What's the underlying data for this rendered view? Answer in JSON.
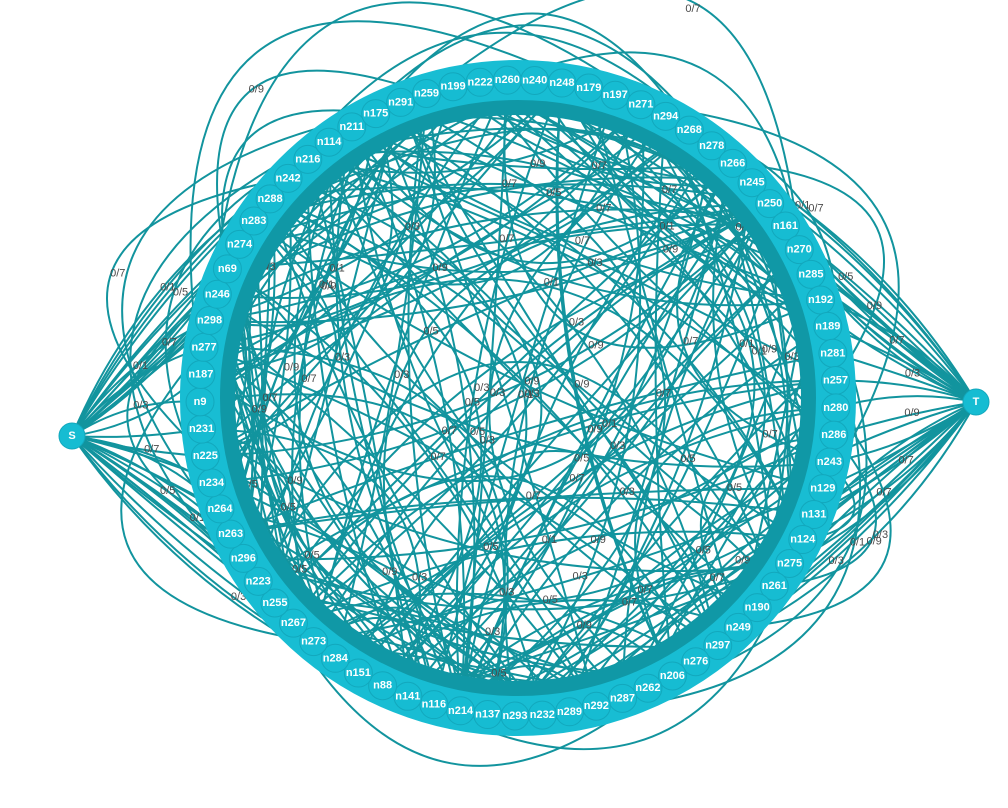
{
  "graph": {
    "colors": {
      "node": "#16bcd2",
      "edge": "#12949e",
      "label": "#4a4a4a",
      "background": "#ffffff"
    },
    "source": {
      "label": "S"
    },
    "sink": {
      "label": "T"
    },
    "edge_label_values": [
      "0/1",
      "0/3",
      "0/5",
      "0/7",
      "0/9"
    ],
    "ring_nodes": [
      "n211",
      "n175",
      "n291",
      "n259",
      "n199",
      "n222",
      "n260",
      "n240",
      "n248",
      "n179",
      "n197",
      "n271",
      "n294",
      "n268",
      "n278",
      "n266",
      "n245",
      "n250",
      "n161",
      "n270",
      "n285",
      "n192",
      "n189",
      "n281",
      "n257",
      "n280",
      "n286",
      "n243",
      "n129",
      "n131",
      "n124",
      "n275",
      "n261",
      "n190",
      "n249",
      "n297",
      "n276",
      "n206",
      "n262",
      "n287",
      "n292",
      "n289",
      "n232",
      "n293",
      "n137",
      "n214",
      "n116",
      "n141",
      "n88",
      "n151",
      "n284",
      "n273",
      "n267",
      "n255",
      "n223",
      "n296",
      "n263",
      "n264",
      "n234",
      "n225",
      "n231",
      "n9",
      "n187",
      "n277",
      "n298",
      "n246",
      "n69",
      "n274",
      "n283",
      "n288",
      "n242",
      "n216",
      "n114"
    ],
    "edge_labels": [
      "0/9",
      "0/3",
      "0/7",
      "0/5",
      "0/1",
      "0/7",
      "0/9",
      "0/3",
      "0/5",
      "0/7",
      "0/1",
      "0/9",
      "0/3",
      "0/7",
      "0/5",
      "0/9",
      "0/1",
      "0/3",
      "0/7",
      "0/9",
      "0/5",
      "0/7",
      "0/3",
      "0/1",
      "0/9",
      "0/7",
      "0/5",
      "0/3",
      "0/9",
      "0/7",
      "0/1",
      "0/5",
      "0/3",
      "0/9",
      "0/7",
      "0/1",
      "0/3",
      "0/5",
      "0/7",
      "0/9",
      "0/3",
      "0/1",
      "0/7",
      "0/5",
      "0/9",
      "0/3",
      "0/7",
      "0/1",
      "0/9",
      "0/5"
    ]
  }
}
